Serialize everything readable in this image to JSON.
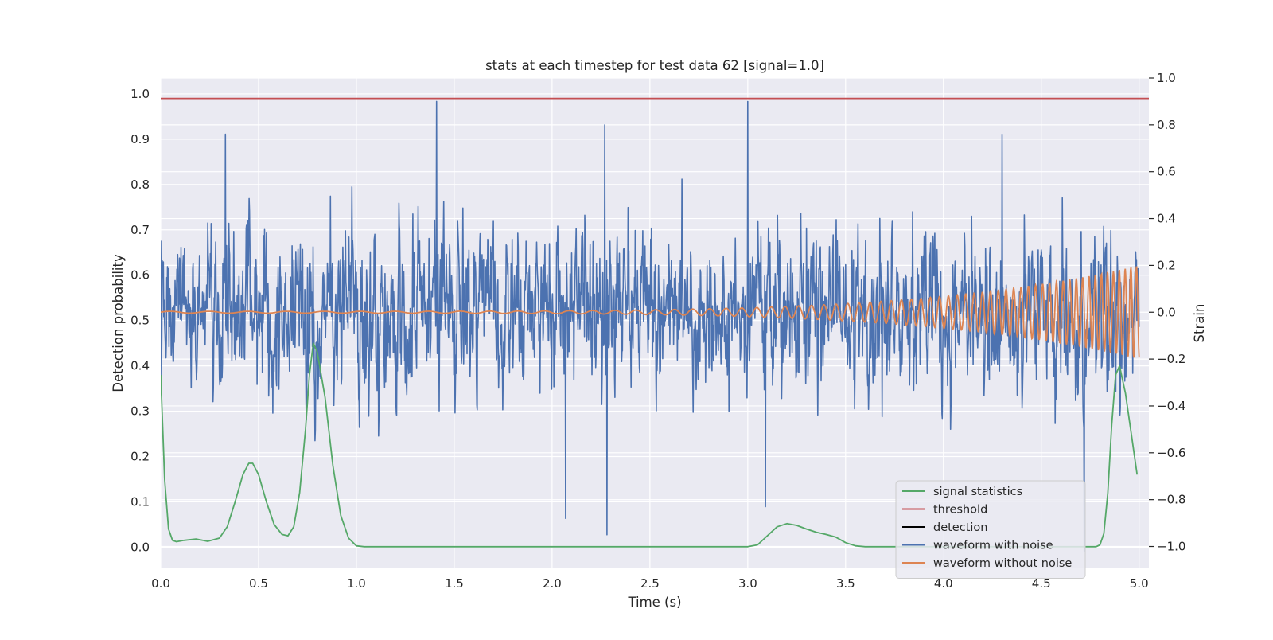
{
  "chart_data": {
    "type": "line",
    "title": "stats at each timestep for test data 62 [signal=1.0]",
    "xlabel": "Time (s)",
    "ylabel_left": "Detection probability",
    "ylabel_right": "Strain",
    "xlim": [
      0.0,
      5.05
    ],
    "ylim_left": [
      -0.045,
      1.035
    ],
    "ylim_right": [
      -1.09,
      1.0
    ],
    "x_ticks": [
      "0.0",
      "0.5",
      "1.0",
      "1.5",
      "2.0",
      "2.5",
      "3.0",
      "3.5",
      "4.0",
      "4.5",
      "5.0"
    ],
    "x_tick_values": [
      0.0,
      0.5,
      1.0,
      1.5,
      2.0,
      2.5,
      3.0,
      3.5,
      4.0,
      4.5,
      5.0
    ],
    "y_left_ticks": [
      "0.0",
      "0.1",
      "0.2",
      "0.3",
      "0.4",
      "0.5",
      "0.6",
      "0.7",
      "0.8",
      "0.9",
      "1.0"
    ],
    "y_left_tick_values": [
      0.0,
      0.1,
      0.2,
      0.3,
      0.4,
      0.5,
      0.6,
      0.7,
      0.8,
      0.9,
      1.0
    ],
    "y_right_ticks": [
      "−1.0",
      "−0.8",
      "−0.6",
      "−0.4",
      "−0.2",
      "0.0",
      "0.2",
      "0.4",
      "0.6",
      "0.8",
      "1.0"
    ],
    "y_right_tick_values": [
      -1.0,
      -0.8,
      -0.6,
      -0.4,
      -0.2,
      0.0,
      0.2,
      0.4,
      0.6,
      0.8,
      1.0
    ],
    "grid": true,
    "legend_position": "lower-right",
    "series": [
      {
        "name": "signal statistics",
        "axis": "left",
        "color": "#55a868",
        "x": [
          0.0,
          0.02,
          0.04,
          0.06,
          0.08,
          0.12,
          0.18,
          0.24,
          0.3,
          0.34,
          0.38,
          0.42,
          0.45,
          0.47,
          0.5,
          0.54,
          0.58,
          0.62,
          0.65,
          0.68,
          0.71,
          0.74,
          0.76,
          0.78,
          0.8,
          0.84,
          0.88,
          0.92,
          0.96,
          1.0,
          1.04,
          1.5,
          2.0,
          2.5,
          3.0,
          3.05,
          3.1,
          3.15,
          3.2,
          3.25,
          3.3,
          3.35,
          3.4,
          3.45,
          3.5,
          3.55,
          3.6,
          4.0,
          4.5,
          4.78,
          4.8,
          4.82,
          4.84,
          4.86,
          4.88,
          4.9,
          4.93,
          4.96,
          4.99
        ],
        "y": [
          0.38,
          0.15,
          0.04,
          0.015,
          0.012,
          0.015,
          0.018,
          0.013,
          0.02,
          0.045,
          0.1,
          0.16,
          0.185,
          0.185,
          0.16,
          0.1,
          0.05,
          0.028,
          0.025,
          0.045,
          0.12,
          0.26,
          0.38,
          0.45,
          0.43,
          0.33,
          0.18,
          0.07,
          0.02,
          0.003,
          0.001,
          0.001,
          0.001,
          0.001,
          0.001,
          0.005,
          0.025,
          0.045,
          0.052,
          0.048,
          0.04,
          0.033,
          0.028,
          0.022,
          0.01,
          0.003,
          0.001,
          0.001,
          0.001,
          0.001,
          0.005,
          0.03,
          0.12,
          0.27,
          0.38,
          0.4,
          0.34,
          0.25,
          0.16
        ]
      },
      {
        "name": "threshold",
        "axis": "left",
        "color": "#c44e52",
        "x": [
          0.0,
          5.05
        ],
        "y": [
          0.99,
          0.99
        ]
      },
      {
        "name": "detection",
        "axis": "left",
        "color": "#000000",
        "x": [],
        "y": []
      },
      {
        "name": "waveform with noise",
        "axis": "right",
        "color": "#4c72b0",
        "t_start": 0.0,
        "t_end": 5.0,
        "envelope_typical": 0.45,
        "peaks": [
          {
            "x": 1.41,
            "y": 0.9
          },
          {
            "x": 3.0,
            "y": 0.9
          },
          {
            "x": 2.27,
            "y": 0.8
          },
          {
            "x": 2.07,
            "y": -0.88
          },
          {
            "x": 2.28,
            "y": -0.95
          },
          {
            "x": 3.09,
            "y": -0.83
          },
          {
            "x": 0.33,
            "y": 0.76
          },
          {
            "x": 4.3,
            "y": 0.76
          },
          {
            "x": 4.72,
            "y": -1.02
          }
        ]
      },
      {
        "name": "waveform without noise",
        "axis": "right",
        "color": "#dd8452",
        "t_start": 0.0,
        "t_end": 5.0,
        "t_coalescence": 5.05,
        "amplitude_start": 0.004,
        "amplitude_end": 0.2,
        "frequency_start_hz": 5,
        "frequency_end_hz": 35
      }
    ]
  }
}
